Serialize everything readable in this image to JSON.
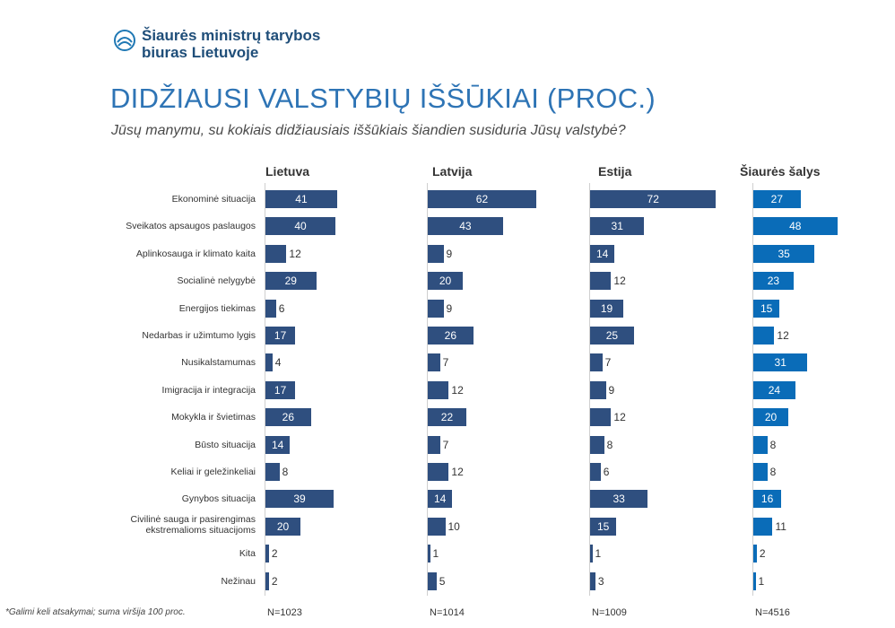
{
  "org": {
    "line1": "Šiaurės ministrų tarybos",
    "line2": "biuras Lietuvoje"
  },
  "title": "DIDŽIAUSI VALSTYBIŲ IŠŠŪKIAI (PROC.)",
  "subtitle": "Jūsų manymu, su kokiais didžiausiais iššūkiais šiandien susiduria Jūsų valstybė?",
  "footnote": "*Galimi keli atsakymai; suma viršija 100 proc.",
  "colors": {
    "primary": "#2f4f7f",
    "nordic": "#0a6cb8",
    "title": "#2e74b5"
  },
  "chart_data": {
    "type": "bar",
    "orientation": "horizontal",
    "categories": [
      "Ekonominė situacija",
      "Sveikatos apsaugos paslaugos",
      "Aplinkosauga ir klimato kaita",
      "Socialinė nelygybė",
      "Energijos tiekimas",
      "Nedarbas ir užimtumo lygis",
      "Nusikalstamumas",
      "Imigracija ir integracija",
      "Mokykla ir švietimas",
      "Būsto situacija",
      "Keliai ir geležinkeliai",
      "Gynybos situacija",
      "Civilinė sauga ir pasirengimas ekstremalioms situacijoms",
      "Kita",
      "Nežinau"
    ],
    "series": [
      {
        "name": "Lietuva",
        "n": "N=1023",
        "values": [
          41,
          40,
          12,
          29,
          6,
          17,
          4,
          17,
          26,
          14,
          8,
          39,
          20,
          2,
          2
        ]
      },
      {
        "name": "Latvija",
        "n": "N=1014",
        "values": [
          62,
          43,
          9,
          20,
          9,
          26,
          7,
          12,
          22,
          7,
          12,
          14,
          10,
          1,
          5
        ]
      },
      {
        "name": "Estija",
        "n": "N=1009",
        "values": [
          72,
          31,
          14,
          12,
          19,
          25,
          7,
          9,
          12,
          8,
          6,
          33,
          15,
          1,
          3
        ]
      },
      {
        "name": "Šiaurės šalys",
        "n": "N=4516",
        "values": [
          27,
          48,
          35,
          23,
          15,
          12,
          31,
          24,
          20,
          8,
          8,
          16,
          11,
          2,
          1
        ]
      }
    ]
  }
}
